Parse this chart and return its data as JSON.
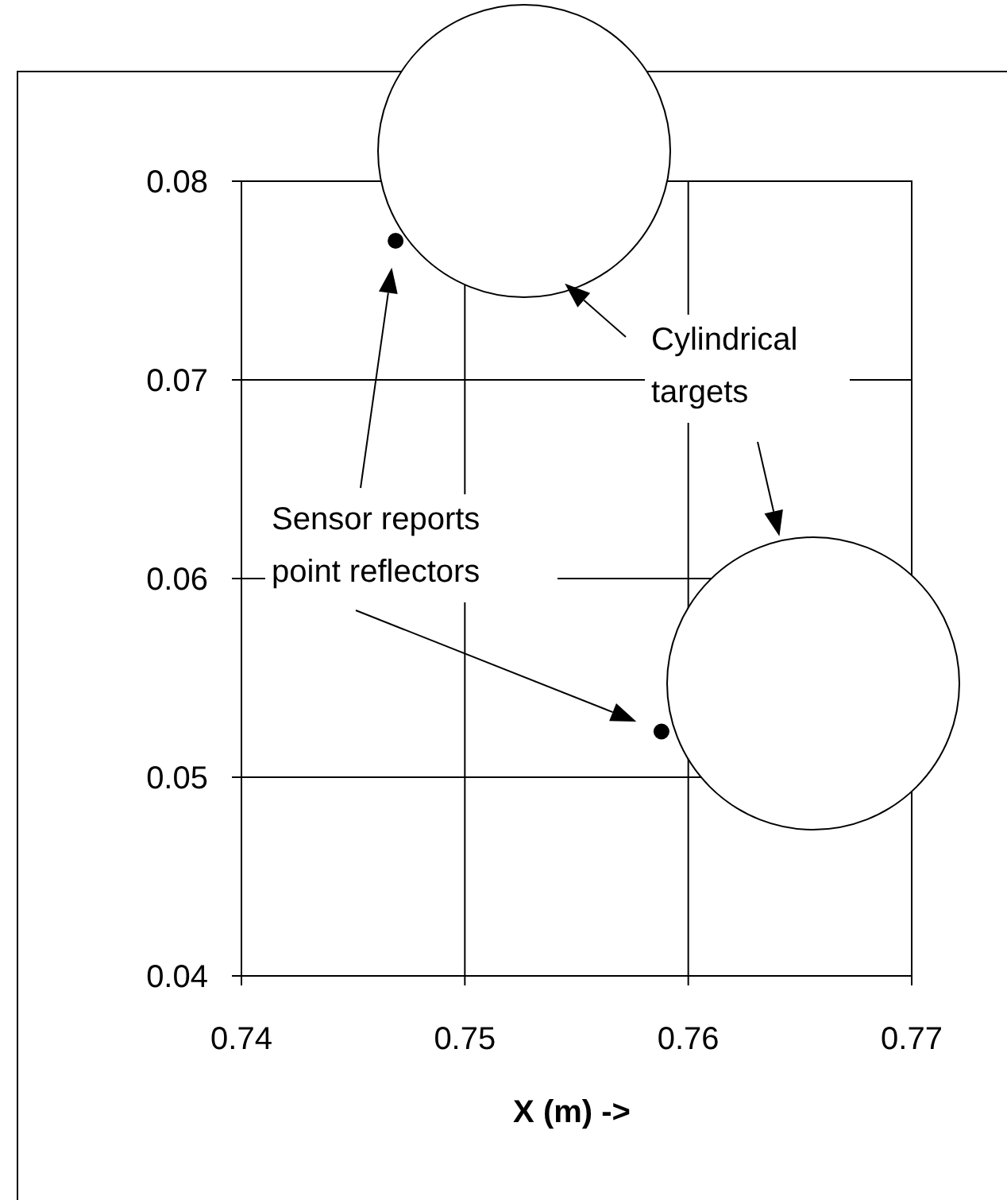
{
  "chart_data": {
    "type": "scatter",
    "xlabel": "X (m) ->",
    "xlim": [
      0.74,
      0.77
    ],
    "xticks": [
      0.74,
      0.75,
      0.76,
      0.77
    ],
    "ylim": [
      0.04,
      0.08
    ],
    "yticks": [
      0.04,
      0.05,
      0.06,
      0.07,
      0.08
    ],
    "grid": true,
    "marker": "circle",
    "series": [
      {
        "color": "#000000",
        "x": [
          0.7469,
          0.7588
        ],
        "values": [
          0.077,
          0.0523
        ]
      }
    ],
    "annotations": [
      "Cylindrical\ntargets",
      "Sensor reports\npoint reflectors"
    ]
  }
}
